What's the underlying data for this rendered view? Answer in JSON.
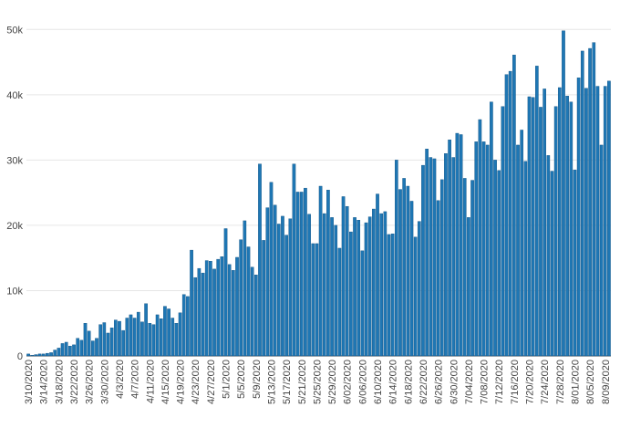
{
  "chart_data": {
    "type": "bar",
    "title": "",
    "xlabel": "",
    "ylabel": "",
    "ylim": [
      0,
      52000
    ],
    "grid": true,
    "bar_color": "#1f77b4",
    "bar_edge_color": "#0d4f80",
    "y_ticks": [
      {
        "value": 0,
        "label": "0"
      },
      {
        "value": 10000,
        "label": "10k"
      },
      {
        "value": 20000,
        "label": "20k"
      },
      {
        "value": 30000,
        "label": "30k"
      },
      {
        "value": 40000,
        "label": "40k"
      },
      {
        "value": 50000,
        "label": "50k"
      }
    ],
    "x_start_date": "3/10/2020",
    "x_tick_labels": [
      "3/10/2020",
      "3/14/2020",
      "3/18/2020",
      "3/22/2020",
      "3/26/2020",
      "3/30/2020",
      "4/3/2020",
      "4/7/2020",
      "4/11/2020",
      "4/15/2020",
      "4/19/2020",
      "4/23/2020",
      "4/27/2020",
      "5/1/2020",
      "5/5/2020",
      "5/9/2020",
      "5/13/2020",
      "5/17/2020",
      "5/21/2020",
      "5/25/2020",
      "5/29/2020",
      "6/02/2020",
      "6/06/2020",
      "6/10/2020",
      "6/14/2020",
      "6/18/2020",
      "6/22/2020",
      "6/26/2020",
      "6/30/2020",
      "7/04/2020",
      "7/08/2020",
      "7/12/2020",
      "7/16/2020",
      "7/20/2020",
      "7/24/2020",
      "7/28/2020",
      "8/01/2020",
      "8/05/2020",
      "8/09/2020"
    ],
    "values": [
      300,
      100,
      200,
      300,
      300,
      400,
      500,
      900,
      1200,
      1900,
      2100,
      1500,
      1700,
      2700,
      2400,
      5000,
      3800,
      2300,
      2700,
      4800,
      5100,
      3500,
      4300,
      5500,
      5300,
      3900,
      5800,
      6300,
      5800,
      6700,
      5200,
      8000,
      5000,
      4800,
      6300,
      5700,
      7600,
      7200,
      5800,
      5000,
      6600,
      9400,
      9100,
      16200,
      12000,
      13400,
      12700,
      14600,
      14500,
      13300,
      14800,
      15200,
      19500,
      14000,
      13100,
      15100,
      17800,
      20700,
      16700,
      13600,
      12400,
      29400,
      17700,
      22700,
      26600,
      23100,
      20200,
      21400,
      18500,
      21000,
      29400,
      25100,
      25100,
      25700,
      21700,
      17200,
      17200,
      26000,
      21800,
      25400,
      21200,
      20000,
      16500,
      24400,
      22900,
      19000,
      21200,
      20800,
      16100,
      20400,
      21300,
      22500,
      24800,
      21800,
      22100,
      18600,
      18700,
      30000,
      25500,
      27200,
      26000,
      23700,
      18200,
      20600,
      29200,
      31700,
      30400,
      30200,
      23800,
      27000,
      31000,
      33100,
      30400,
      34100,
      33900,
      27200,
      21200,
      26900,
      32800,
      36200,
      32800,
      32300,
      38900,
      30000,
      28400,
      38200,
      43100,
      43600,
      46100,
      32300,
      34600,
      29800,
      39700,
      39600,
      44400,
      38100,
      40900,
      30700,
      28300,
      38200,
      41100,
      49800,
      39800,
      38900,
      28500,
      42600,
      46700,
      41000,
      47100,
      48000,
      41300,
      32300,
      41300,
      42100
    ]
  }
}
